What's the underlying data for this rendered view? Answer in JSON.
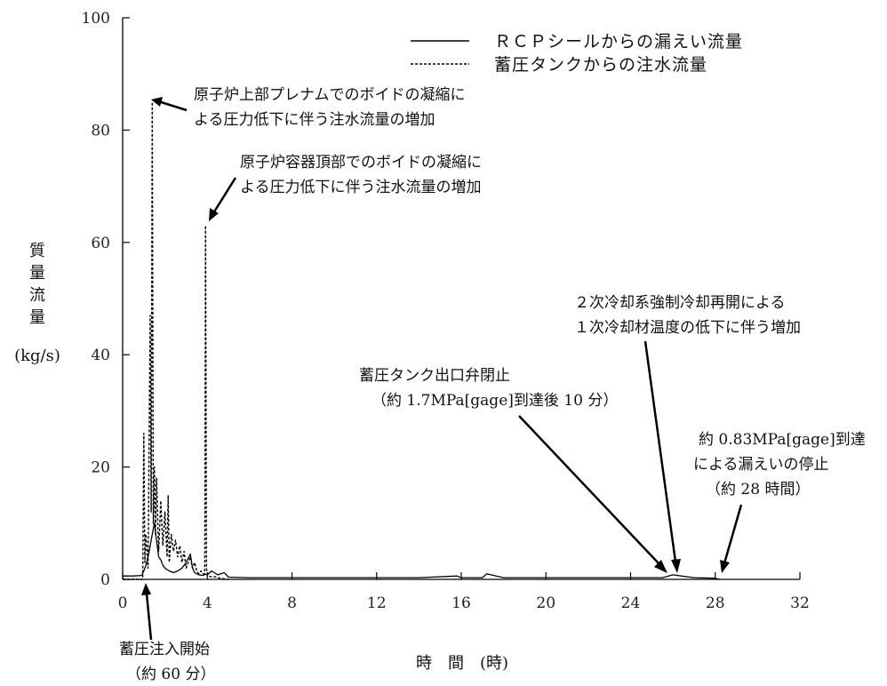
{
  "chart_data": {
    "type": "line",
    "xlabel": "時　間　(時)",
    "ylabel_lines": [
      "質",
      "量",
      "流",
      "量"
    ],
    "ylabel_unit": "(kg/s)",
    "xlim": [
      0,
      32
    ],
    "ylim": [
      0,
      100
    ],
    "x_ticks": [
      0,
      4,
      8,
      12,
      16,
      20,
      24,
      28,
      32
    ],
    "y_ticks": [
      0,
      20,
      40,
      60,
      80,
      100
    ],
    "grid": false,
    "legend_position": "top-right",
    "series": [
      {
        "name": "ＲＣＰシールからの漏えい流量",
        "style": "solid",
        "x": [
          0,
          0.5,
          0.9,
          1.0,
          1.1,
          1.2,
          1.3,
          1.4,
          1.5,
          1.6,
          1.7,
          1.8,
          1.9,
          2.0,
          2.2,
          2.4,
          2.6,
          2.8,
          3.0,
          3.2,
          3.3,
          3.4,
          3.6,
          3.8,
          3.9,
          4.0,
          4.2,
          4.5,
          4.8,
          5.0,
          6,
          8,
          10,
          12,
          14,
          15.8,
          16,
          17,
          17.2,
          18,
          20,
          22,
          24,
          25.5,
          26,
          27,
          28,
          28.2
        ],
        "y": [
          0.6,
          0.6,
          0.7,
          1.5,
          2.5,
          4,
          6,
          8,
          10,
          7,
          4,
          3.5,
          2.5,
          2,
          1.5,
          1.2,
          1.5,
          2,
          3,
          4.5,
          2,
          1.2,
          0.8,
          0.7,
          0.9,
          0.8,
          1.5,
          0.8,
          1.2,
          0.4,
          0.3,
          0.3,
          0.3,
          0.3,
          0.3,
          0.6,
          0.3,
          0.3,
          1,
          0.3,
          0.3,
          0.3,
          0.3,
          0.3,
          0.8,
          0.3,
          0.2,
          0
        ]
      },
      {
        "name": "蓄圧タンクからの注水流量",
        "style": "dashed",
        "x": [
          0,
          0.95,
          1.0,
          1.05,
          1.1,
          1.2,
          1.3,
          1.35,
          1.4,
          1.45,
          1.5,
          1.55,
          1.6,
          1.7,
          1.8,
          1.9,
          2.0,
          2.1,
          2.15,
          2.2,
          2.3,
          2.4,
          2.5,
          2.6,
          2.7,
          2.8,
          2.9,
          3.0,
          3.1,
          3.2,
          3.3,
          3.4,
          3.5,
          3.6,
          3.7,
          3.8,
          3.88,
          3.92,
          3.96,
          4.0,
          4.1,
          4.3,
          4.6,
          5.0
        ],
        "y": [
          0,
          0,
          26,
          3,
          8,
          2,
          47,
          12,
          85,
          10,
          20,
          8,
          18,
          5,
          14,
          6,
          12,
          4,
          15,
          3,
          8,
          5,
          7,
          4,
          6,
          3,
          5,
          2,
          3,
          4,
          2,
          3,
          1.5,
          1,
          1.5,
          1,
          1,
          63,
          2,
          1,
          0.5,
          0.5,
          0.2,
          0
        ]
      }
    ],
    "annotations": [
      {
        "lines": [
          "原子炉上部プレナムでのボイドの凝縮に",
          "よる圧力低下に伴う注水流量の増加"
        ]
      },
      {
        "lines": [
          "原子炉容器頂部でのボイドの凝縮に",
          "よる圧力低下に伴う注水流量の増加"
        ]
      },
      {
        "lines": [
          "２次冷却系強制冷却再開による",
          "１次冷却材温度の低下に伴う増加"
        ]
      },
      {
        "lines": [
          "蓄圧タンク出口弁閉止",
          "（約 1.7MPa[gage]到達後 10 分）"
        ]
      },
      {
        "lines": [
          "約 0.83MPa[gage]到達",
          "による漏えいの停止",
          "（約 28 時間）"
        ]
      },
      {
        "lines": [
          "蓄圧注入開始",
          "（約 60 分）"
        ]
      }
    ]
  }
}
